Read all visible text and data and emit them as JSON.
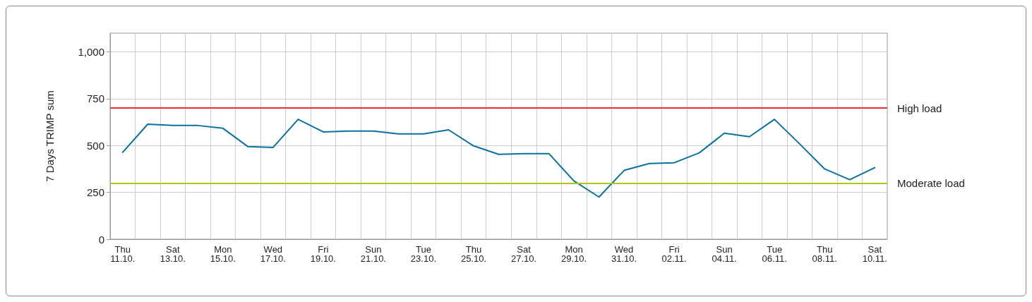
{
  "chart_data": {
    "type": "line",
    "ylabel": "7 Days TRIMP sum",
    "categories": [
      "Thu\n11.10.",
      null,
      "Sat\n13.10.",
      null,
      "Mon\n15.10.",
      null,
      "Wed\n17.10.",
      null,
      "Fri\n19.10.",
      null,
      "Sun\n21.10.",
      null,
      "Tue\n23.10.",
      null,
      "Thu\n25.10.",
      null,
      "Sat\n27.10.",
      null,
      "Mon\n29.10.",
      null,
      "Wed\n31.10.",
      null,
      "Fri\n02.11.",
      null,
      "Sun\n04.11.",
      null,
      "Tue\n06.11.",
      null,
      "Thu\n08.11.",
      null,
      "Sat\n10.11."
    ],
    "series": [
      {
        "color": "#0a72a0",
        "values": [
          464,
          614,
          607,
          607,
          592,
          494,
          490,
          640,
          573,
          577,
          577,
          562,
          562,
          584,
          498,
          453,
          457,
          457,
          311,
          225,
          367,
          404,
          408,
          461,
          566,
          547,
          640,
          509,
          375,
          318,
          382
        ]
      }
    ],
    "ylim": [
      0,
      1100
    ],
    "yticks": [
      0,
      250,
      500,
      750,
      {
        "value": 1000,
        "label": "1,000"
      }
    ],
    "grid": true,
    "marker": "none",
    "line_style": "solid",
    "ref_lines": [
      {
        "axis": "y",
        "value": 700,
        "label": "High load",
        "color": "#e8312a"
      },
      {
        "axis": "y",
        "value": 300,
        "label": "Moderate load",
        "color": "#b5c41a"
      }
    ]
  }
}
